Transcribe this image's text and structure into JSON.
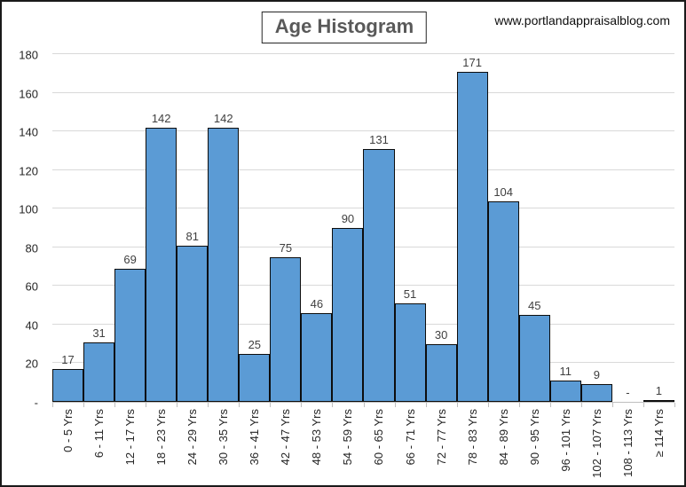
{
  "header": {
    "title": "Age Histogram",
    "watermark": "www.portlandappraisalblog.com"
  },
  "chart_data": {
    "type": "bar",
    "title": "Age Histogram",
    "categories": [
      "0 - 5 Yrs",
      "6 - 11 Yrs",
      "12 - 17 Yrs",
      "18 - 23 Yrs",
      "24 - 29 Yrs",
      "30 - 35 Yrs",
      "36 - 41 Yrs",
      "42 - 47 Yrs",
      "48 - 53 Yrs",
      "54 - 59 Yrs",
      "60 - 65 Yrs",
      "66 - 71 Yrs",
      "72 - 77 Yrs",
      "78 - 83 Yrs",
      "84 - 89 Yrs",
      "90 - 95 Yrs",
      "96 - 101 Yrs",
      "102 - 107 Yrs",
      "108 - 113 Yrs",
      "≥ 114 Yrs"
    ],
    "values": [
      17,
      31,
      69,
      142,
      81,
      142,
      25,
      75,
      46,
      90,
      131,
      51,
      30,
      171,
      104,
      45,
      11,
      9,
      0,
      1
    ],
    "value_labels": [
      "17",
      "31",
      "69",
      "142",
      "81",
      "142",
      "25",
      "75",
      "46",
      "90",
      "131",
      "51",
      "30",
      "171",
      "104",
      "45",
      "11",
      "9",
      "-",
      "1"
    ],
    "xlabel": "",
    "ylabel": "",
    "ylim": [
      0,
      180
    ],
    "y_tick_step": 20,
    "y_tick_labels": [
      "180",
      "160",
      "140",
      "120",
      "100",
      "80",
      "60",
      "40",
      "20",
      "-"
    ],
    "grid": "horizontal",
    "legend": "none",
    "colors": {
      "bar_fill": "#5b9bd5",
      "bar_border": "#0d0d0d",
      "gridline": "#d9d9d9",
      "axis_line": "#bfbfbf",
      "label_text": "#404040",
      "title_text": "#595959"
    }
  }
}
